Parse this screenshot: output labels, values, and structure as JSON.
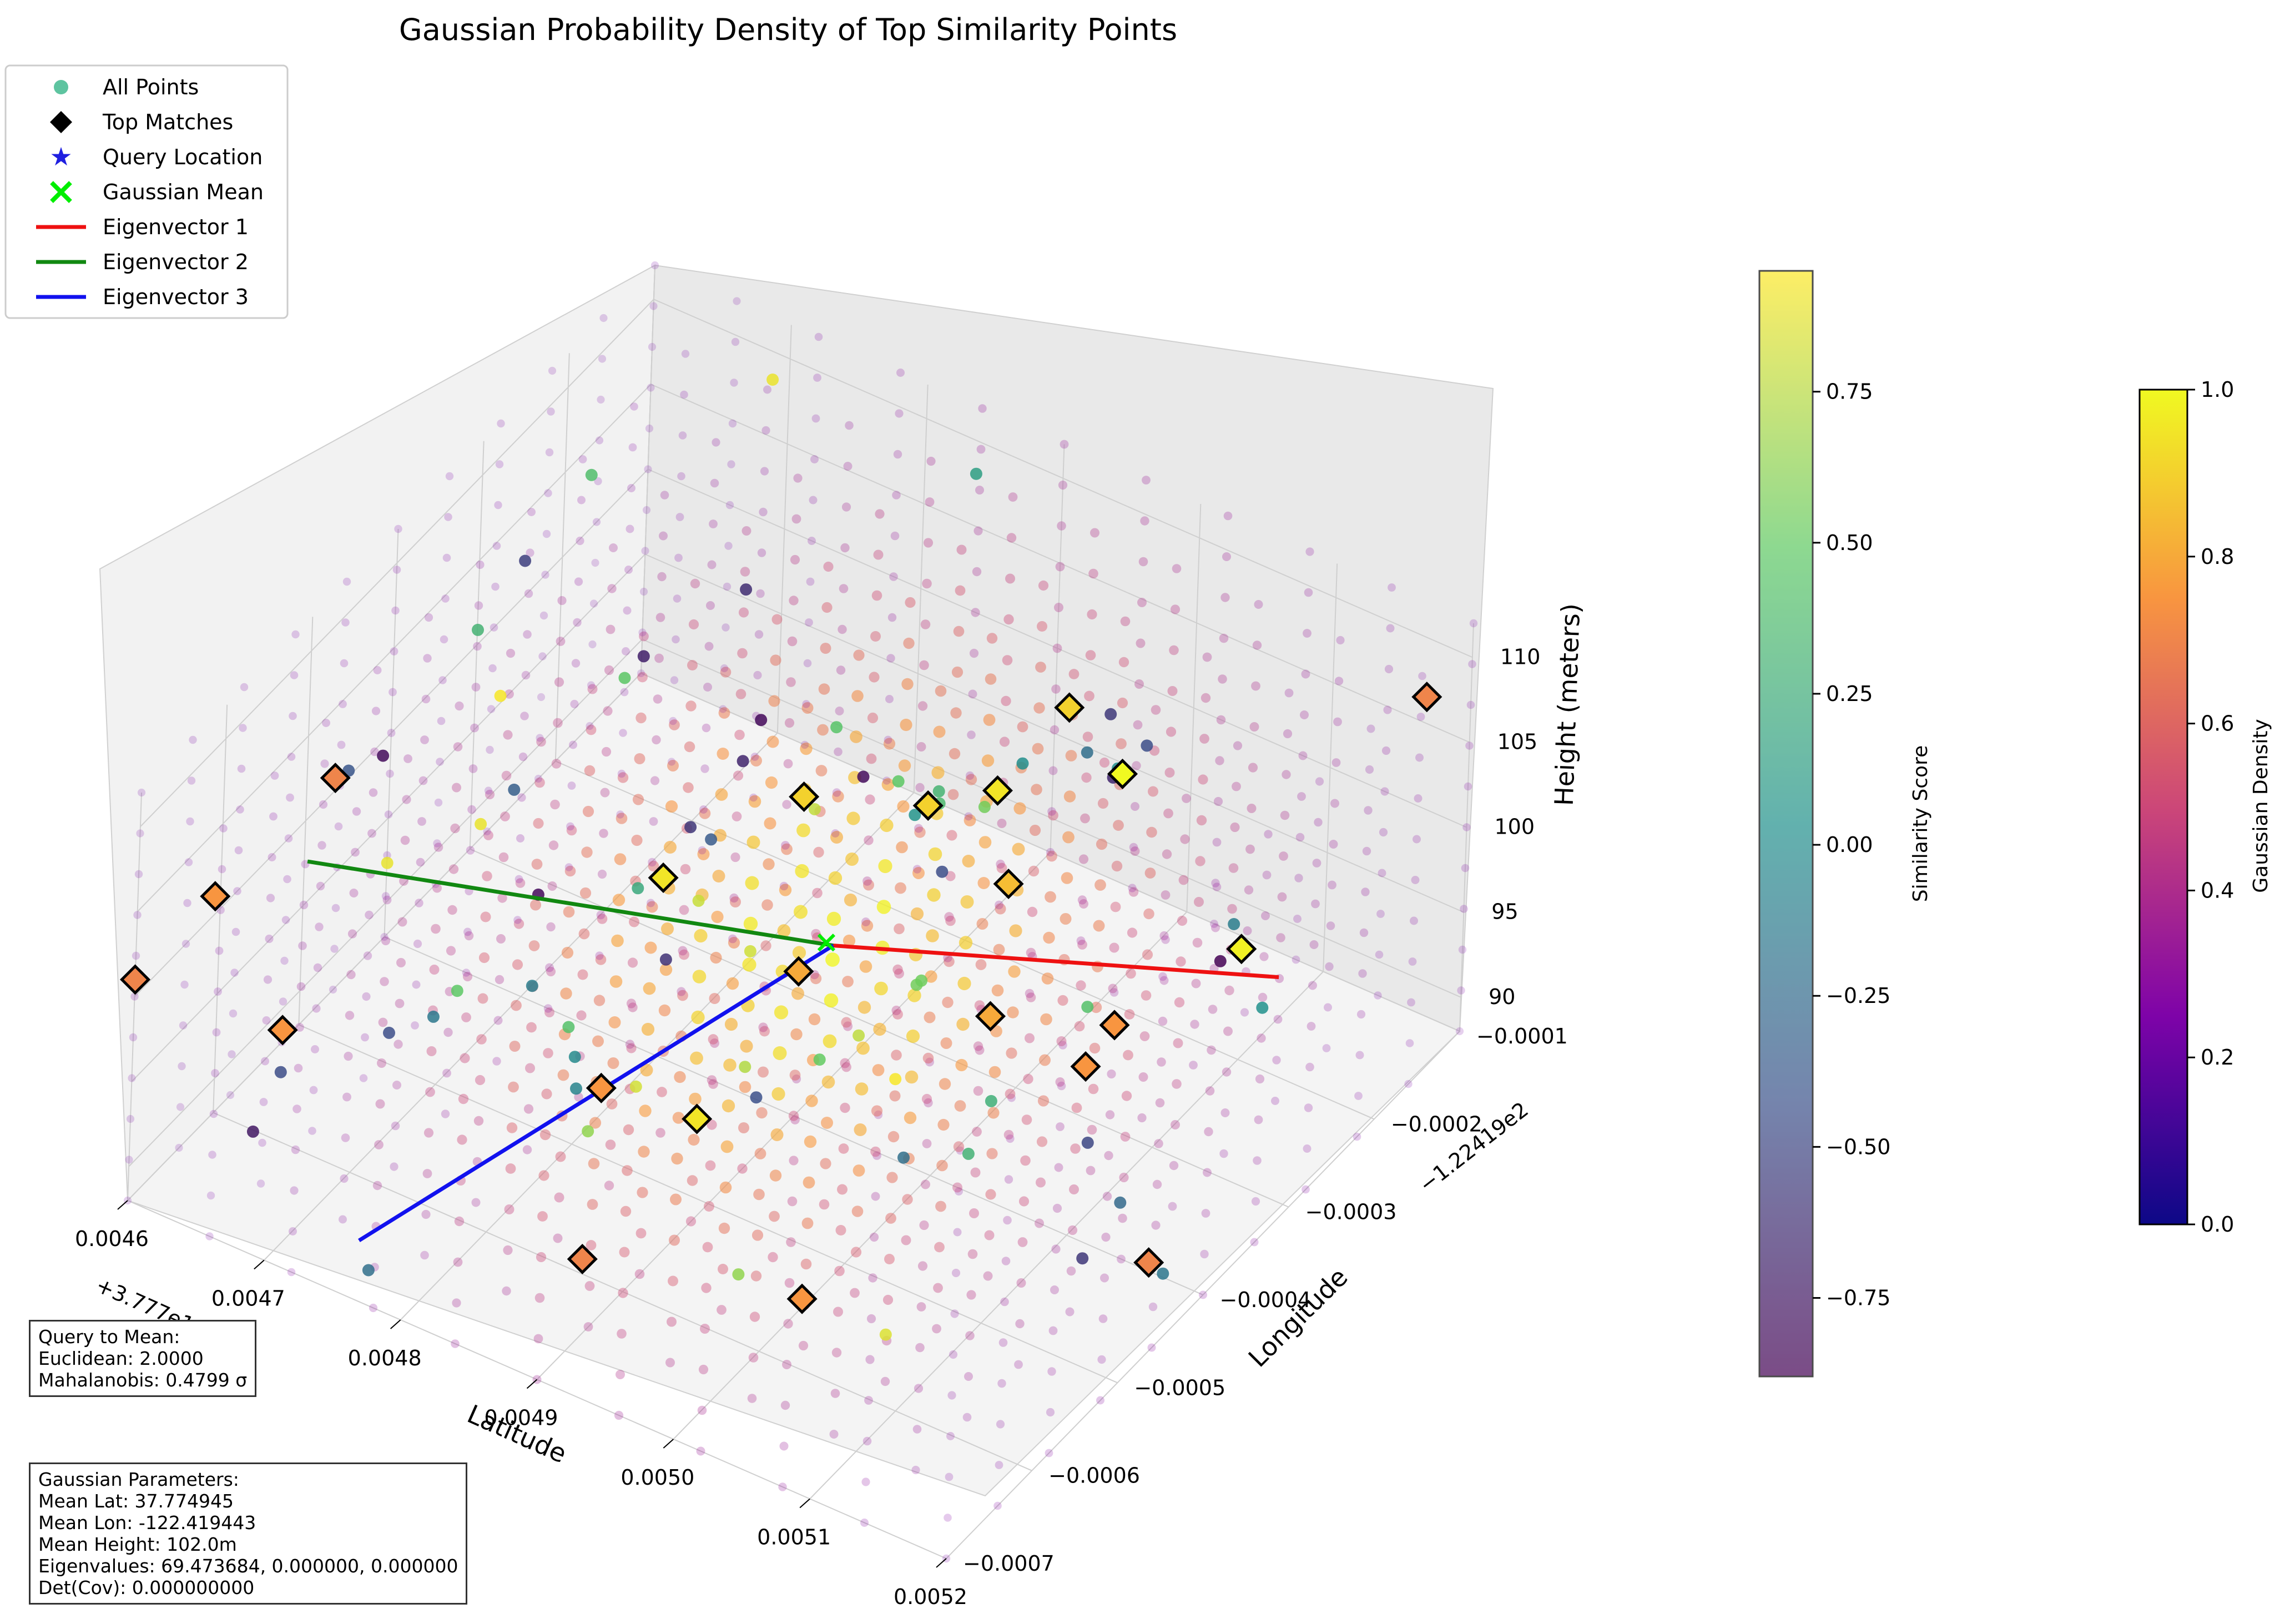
{
  "chart_data": {
    "type": "scatter",
    "title": "Gaussian Probability Density of Top Similarity Points",
    "axes": {
      "x": {
        "label": "Latitude",
        "offset": "+3.777e1",
        "ticks": [
          "0.0046",
          "0.0047",
          "0.0048",
          "0.0049",
          "0.0050",
          "0.0051",
          "0.0052"
        ],
        "range": [
          0.0046,
          0.0052
        ]
      },
      "y": {
        "label": "Longitude",
        "offset": "−1.22419e2",
        "ticks": [
          "−0.0007",
          "−0.0006",
          "−0.0005",
          "−0.0004",
          "−0.0003",
          "−0.0002",
          "−0.0001"
        ],
        "range": [
          -0.0007,
          -0.0001
        ]
      },
      "z": {
        "label": "Height (meters)",
        "ticks": [
          "90",
          "95",
          "100",
          "105",
          "110"
        ],
        "range": [
          88,
          112
        ]
      }
    },
    "legend": {
      "placement": "upper-left",
      "entries": [
        {
          "label": "All Points",
          "marker": "circle",
          "color": "#5ec4a0"
        },
        {
          "label": "Top Matches",
          "marker": "diamond",
          "color": "#000000"
        },
        {
          "label": "Query Location",
          "marker": "star",
          "color": "#1f1fe0"
        },
        {
          "label": "Gaussian Mean",
          "marker": "x",
          "color": "#00ee00"
        },
        {
          "label": "Eigenvector 1",
          "marker": "line",
          "color": "#ee1111"
        },
        {
          "label": "Eigenvector 2",
          "marker": "line",
          "color": "#118811"
        },
        {
          "label": "Eigenvector 3",
          "marker": "line",
          "color": "#1111ee"
        }
      ]
    },
    "colorbars": [
      {
        "label": "Similarity Score",
        "colormap": "viridis",
        "ticks": [
          "0.75",
          "0.50",
          "0.25",
          "0.00",
          "−0.25",
          "−0.50",
          "−0.75"
        ],
        "range": [
          -0.88,
          0.95
        ]
      },
      {
        "label": "Gaussian Density",
        "colormap": "plasma",
        "ticks": [
          "1.0",
          "0.8",
          "0.6",
          "0.4",
          "0.2",
          "0.0"
        ],
        "range": [
          0.0,
          1.0
        ]
      }
    ],
    "gaussian_mean": {
      "lat": 37.774945,
      "lon": -122.419443,
      "height": 102.0
    },
    "top_matches": [
      {
        "lat": 37.77468,
        "lon": -122.4196,
        "height": 110.5,
        "density": 0.7
      },
      {
        "lat": 37.77462,
        "lon": -122.41964,
        "height": 103.5,
        "density": 0.75
      },
      {
        "lat": 37.7746,
        "lon": -122.4197,
        "height": 101.0,
        "density": 0.7
      },
      {
        "lat": 37.77466,
        "lon": -122.41962,
        "height": 96.0,
        "density": 0.75
      },
      {
        "lat": 37.7748,
        "lon": -122.4194,
        "height": 98.5,
        "density": 0.95
      },
      {
        "lat": 37.77484,
        "lon": -122.4193,
        "height": 99.5,
        "density": 0.9
      },
      {
        "lat": 37.7749,
        "lon": -122.41925,
        "height": 98.5,
        "density": 0.9
      },
      {
        "lat": 37.77492,
        "lon": -122.4192,
        "height": 97.5,
        "density": 0.95
      },
      {
        "lat": 37.77494,
        "lon": -122.41915,
        "height": 100.5,
        "density": 0.9
      },
      {
        "lat": 37.77498,
        "lon": -122.41915,
        "height": 98.0,
        "density": 1.0
      },
      {
        "lat": 37.77496,
        "lon": -122.41925,
        "height": 96.0,
        "density": 0.85
      },
      {
        "lat": 37.7749,
        "lon": -122.4194,
        "height": 96.5,
        "density": 0.8
      },
      {
        "lat": 37.77482,
        "lon": -122.4195,
        "height": 92.0,
        "density": 0.75
      },
      {
        "lat": 37.77498,
        "lon": -122.4193,
        "height": 91.5,
        "density": 0.8
      },
      {
        "lat": 37.77504,
        "lon": -122.41925,
        "height": 90.5,
        "density": 0.75
      },
      {
        "lat": 37.7751,
        "lon": -122.4192,
        "height": 94.5,
        "density": 0.98
      },
      {
        "lat": 37.77518,
        "lon": -122.41912,
        "height": 108.0,
        "density": 0.7
      },
      {
        "lat": 37.77516,
        "lon": -122.4194,
        "height": 88.5,
        "density": 0.7
      },
      {
        "lat": 37.77505,
        "lon": -122.4193,
        "height": 91.0,
        "density": 0.75
      },
      {
        "lat": 37.77486,
        "lon": -122.41945,
        "height": 89.0,
        "density": 0.95
      },
      {
        "lat": 37.775,
        "lon": -122.41955,
        "height": 88.5,
        "density": 0.75
      },
      {
        "lat": 37.7749,
        "lon": -122.41965,
        "height": 92.5,
        "density": 0.7
      }
    ],
    "eigenvector_segments": [
      {
        "name": "Eigenvector 1",
        "from": {
          "lat": 0.00495,
          "lon": -0.000443,
          "height": 102.0
        },
        "to": {
          "lat": 0.00508,
          "lon": -0.00012,
          "height": 88.0
        }
      },
      {
        "name": "Eigenvector 2",
        "from": {
          "lat": 0.00495,
          "lon": -0.000443,
          "height": 102.0
        },
        "to": {
          "lat": 0.00465,
          "lon": -0.00058,
          "height": 103.5
        }
      },
      {
        "name": "Eigenvector 3",
        "from": {
          "lat": 0.00495,
          "lon": -0.000443,
          "height": 102.0
        },
        "to": {
          "lat": 0.00478,
          "lon": -0.00072,
          "height": 93.0
        }
      }
    ]
  },
  "info_boxes": {
    "query_to_mean": [
      "Query to Mean:",
      "Euclidean: 2.0000",
      "Mahalanobis: 0.4799 σ"
    ],
    "gaussian_parameters": [
      "Gaussian Parameters:",
      "Mean Lat: 37.774945",
      "Mean Lon: -122.419443",
      "Mean Height: 102.0m",
      "Eigenvalues: 69.473684, 0.000000, 0.000000",
      "Det(Cov): 0.000000000"
    ]
  }
}
